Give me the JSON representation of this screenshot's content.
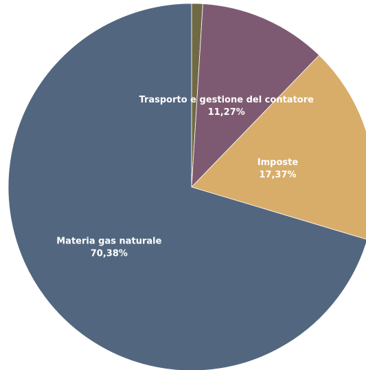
{
  "chart_data": {
    "type": "pie",
    "title": "",
    "slices": [
      {
        "label": "",
        "value": 0.98,
        "value_label": "",
        "color": "#6f6a45"
      },
      {
        "label": "Trasporto e gestione del contatore",
        "value": 11.27,
        "value_label": "11,27%",
        "color": "#7e5a72"
      },
      {
        "label": "Imposte",
        "value": 17.37,
        "value_label": "17,37%",
        "color": "#d8ad6a"
      },
      {
        "label": "Materia gas naturale",
        "value": 70.38,
        "value_label": "70,38%",
        "color": "#52677f"
      }
    ],
    "start": "top (12 o'clock)",
    "direction": "clockwise",
    "legend": "none"
  }
}
